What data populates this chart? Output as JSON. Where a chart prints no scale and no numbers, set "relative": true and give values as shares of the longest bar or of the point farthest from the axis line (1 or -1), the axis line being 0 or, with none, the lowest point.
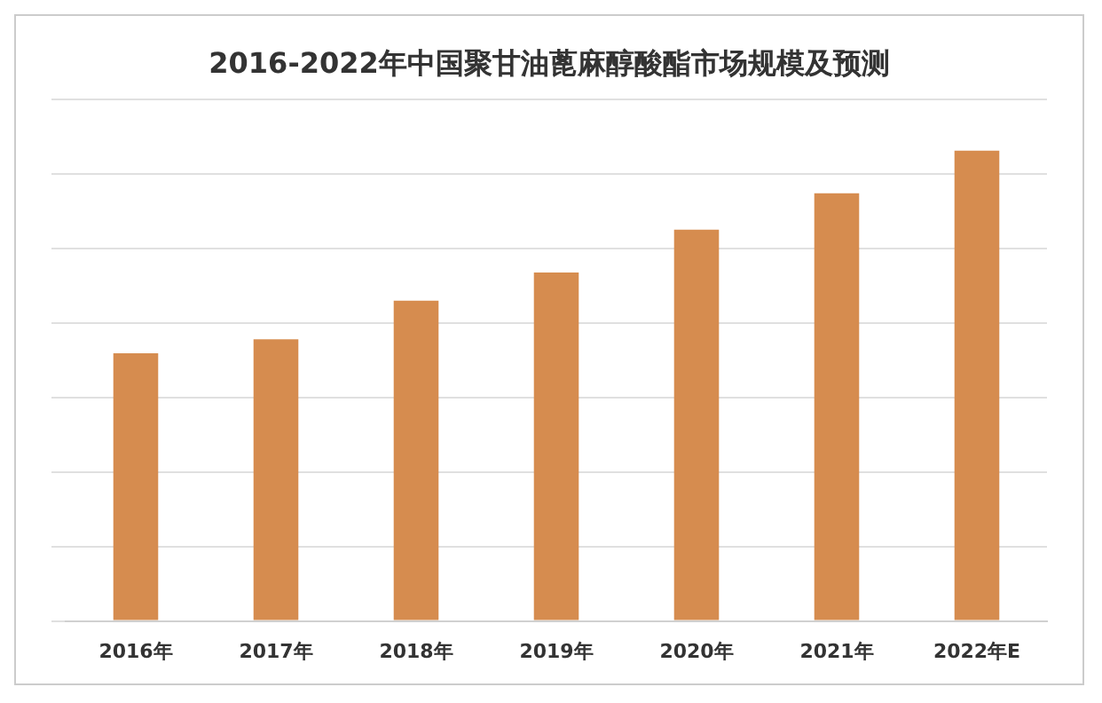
{
  "chart_data": {
    "type": "bar",
    "title": "2016-2022年中国聚甘油蓖麻醇酸酯市场规模及预测",
    "categories": [
      "2016年",
      "2017年",
      "2018年",
      "2019年",
      "2020年",
      "2021年",
      "2022年E"
    ],
    "values": [
      0.569,
      0.599,
      0.681,
      0.741,
      0.832,
      0.909,
      1
    ],
    "color": "#d68c4f",
    "relative": true,
    "grid": "y",
    "legend": false
  }
}
